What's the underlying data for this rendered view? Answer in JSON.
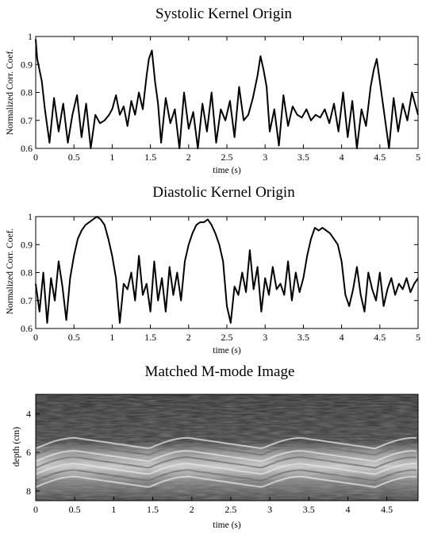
{
  "chart_data": [
    {
      "type": "line",
      "title": "Systolic Kernel Origin",
      "xlabel": "time (s)",
      "ylabel": "Normalized Corr. Coef.",
      "xlim": [
        0,
        5
      ],
      "ylim": [
        0.6,
        1.0
      ],
      "xticks": [
        "0",
        "0.5",
        "1",
        "1.5",
        "2",
        "2.5",
        "3",
        "3.5",
        "4",
        "4.5",
        "5"
      ],
      "yticks": [
        "0.6",
        "0.7",
        "0.8",
        "0.9",
        "1"
      ],
      "series": [
        {
          "color": "#000000",
          "x": [
            0,
            0.02,
            0.05,
            0.08,
            0.12,
            0.18,
            0.24,
            0.3,
            0.36,
            0.42,
            0.48,
            0.54,
            0.6,
            0.66,
            0.72,
            0.78,
            0.84,
            0.9,
            0.96,
            1.0,
            1.05,
            1.1,
            1.15,
            1.2,
            1.25,
            1.3,
            1.35,
            1.4,
            1.45,
            1.48,
            1.52,
            1.56,
            1.6,
            1.64,
            1.7,
            1.76,
            1.82,
            1.88,
            1.94,
            2.0,
            2.06,
            2.12,
            2.18,
            2.24,
            2.3,
            2.36,
            2.42,
            2.48,
            2.54,
            2.6,
            2.66,
            2.72,
            2.78,
            2.84,
            2.9,
            2.94,
            2.98,
            3.02,
            3.06,
            3.12,
            3.18,
            3.24,
            3.3,
            3.36,
            3.42,
            3.48,
            3.54,
            3.6,
            3.66,
            3.72,
            3.78,
            3.84,
            3.9,
            3.96,
            4.02,
            4.08,
            4.14,
            4.2,
            4.26,
            4.32,
            4.38,
            4.42,
            4.46,
            4.5,
            4.56,
            4.62,
            4.68,
            4.74,
            4.8,
            4.86,
            4.92,
            5.0
          ],
          "y": [
            0.99,
            0.92,
            0.88,
            0.84,
            0.74,
            0.62,
            0.78,
            0.66,
            0.76,
            0.62,
            0.72,
            0.79,
            0.64,
            0.76,
            0.6,
            0.72,
            0.69,
            0.7,
            0.72,
            0.74,
            0.79,
            0.72,
            0.75,
            0.68,
            0.77,
            0.72,
            0.8,
            0.74,
            0.86,
            0.92,
            0.95,
            0.84,
            0.76,
            0.62,
            0.78,
            0.69,
            0.74,
            0.6,
            0.8,
            0.67,
            0.73,
            0.6,
            0.76,
            0.66,
            0.8,
            0.62,
            0.74,
            0.7,
            0.77,
            0.64,
            0.82,
            0.7,
            0.72,
            0.78,
            0.86,
            0.93,
            0.88,
            0.82,
            0.66,
            0.74,
            0.61,
            0.79,
            0.68,
            0.75,
            0.72,
            0.71,
            0.74,
            0.7,
            0.72,
            0.71,
            0.74,
            0.69,
            0.76,
            0.66,
            0.8,
            0.64,
            0.77,
            0.6,
            0.74,
            0.68,
            0.82,
            0.88,
            0.92,
            0.84,
            0.72,
            0.6,
            0.78,
            0.66,
            0.76,
            0.7,
            0.8,
            0.72
          ]
        }
      ]
    },
    {
      "type": "line",
      "title": "Diastolic Kernel Origin",
      "xlabel": "time (s)",
      "ylabel": "Normalized Corr. Coef.",
      "xlim": [
        0,
        5
      ],
      "ylim": [
        0.6,
        1.0
      ],
      "xticks": [
        "0",
        "0.5",
        "1",
        "1.5",
        "2",
        "2.5",
        "3",
        "3.5",
        "4",
        "4.5",
        "5"
      ],
      "yticks": [
        "0.6",
        "0.7",
        "0.8",
        "0.9",
        "1"
      ],
      "series": [
        {
          "color": "#000000",
          "x": [
            0,
            0.05,
            0.1,
            0.15,
            0.2,
            0.25,
            0.3,
            0.35,
            0.4,
            0.45,
            0.5,
            0.55,
            0.6,
            0.65,
            0.7,
            0.75,
            0.8,
            0.85,
            0.9,
            0.95,
            1.0,
            1.05,
            1.1,
            1.15,
            1.2,
            1.25,
            1.3,
            1.35,
            1.4,
            1.45,
            1.5,
            1.55,
            1.6,
            1.65,
            1.7,
            1.75,
            1.8,
            1.85,
            1.9,
            1.95,
            2.0,
            2.05,
            2.1,
            2.15,
            2.2,
            2.25,
            2.3,
            2.35,
            2.4,
            2.45,
            2.5,
            2.55,
            2.6,
            2.65,
            2.7,
            2.75,
            2.8,
            2.85,
            2.9,
            2.95,
            3.0,
            3.05,
            3.1,
            3.15,
            3.2,
            3.25,
            3.3,
            3.35,
            3.4,
            3.45,
            3.5,
            3.55,
            3.6,
            3.65,
            3.7,
            3.75,
            3.8,
            3.85,
            3.9,
            3.95,
            4.0,
            4.05,
            4.1,
            4.15,
            4.2,
            4.25,
            4.3,
            4.35,
            4.4,
            4.45,
            4.5,
            4.55,
            4.6,
            4.65,
            4.7,
            4.75,
            4.8,
            4.85,
            4.9,
            4.95,
            5.0
          ],
          "y": [
            0.76,
            0.66,
            0.8,
            0.62,
            0.78,
            0.7,
            0.84,
            0.75,
            0.63,
            0.78,
            0.86,
            0.92,
            0.95,
            0.97,
            0.98,
            0.99,
            1.0,
            0.99,
            0.97,
            0.92,
            0.86,
            0.78,
            0.62,
            0.76,
            0.74,
            0.8,
            0.7,
            0.86,
            0.72,
            0.76,
            0.66,
            0.84,
            0.7,
            0.78,
            0.66,
            0.82,
            0.72,
            0.8,
            0.7,
            0.84,
            0.9,
            0.94,
            0.97,
            0.98,
            0.98,
            0.99,
            0.97,
            0.94,
            0.9,
            0.84,
            0.68,
            0.62,
            0.75,
            0.72,
            0.8,
            0.73,
            0.88,
            0.74,
            0.82,
            0.66,
            0.78,
            0.72,
            0.82,
            0.74,
            0.76,
            0.72,
            0.84,
            0.7,
            0.8,
            0.73,
            0.78,
            0.86,
            0.92,
            0.96,
            0.95,
            0.96,
            0.95,
            0.94,
            0.92,
            0.9,
            0.84,
            0.72,
            0.68,
            0.74,
            0.82,
            0.72,
            0.66,
            0.8,
            0.74,
            0.7,
            0.8,
            0.68,
            0.74,
            0.78,
            0.72,
            0.76,
            0.74,
            0.78,
            0.73,
            0.76,
            0.78
          ]
        }
      ]
    },
    {
      "type": "heatmap",
      "title": "Matched M-mode Image",
      "xlabel": "time (s)",
      "ylabel": "depth (cm)",
      "xlim": [
        0,
        4.9
      ],
      "ylim": [
        8.5,
        3.0
      ],
      "xticks": [
        "0",
        "0.5",
        "1",
        "1.5",
        "2",
        "2.5",
        "3",
        "3.5",
        "4",
        "4.5"
      ],
      "yticks": [
        "4",
        "6",
        "8"
      ],
      "colormap": "grayscale",
      "bright_band_depth_cm": [
        5.8,
        7.8
      ]
    }
  ]
}
